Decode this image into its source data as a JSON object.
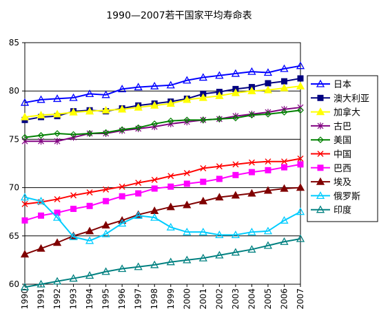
{
  "chart_data": {
    "type": "line",
    "title": "1990—2007若干国家平均寿命表",
    "xlabel": "",
    "ylabel": "",
    "x": [
      "1990",
      "1991",
      "1992",
      "1993",
      "1994",
      "1995",
      "1996",
      "1997",
      "1998",
      "1999",
      "2000",
      "2001",
      "2002",
      "2003",
      "2004",
      "2005",
      "2006",
      "2007"
    ],
    "ylim": [
      60,
      85
    ],
    "yticks": [
      "60",
      "65",
      "70",
      "75",
      "80",
      "85"
    ],
    "grid": "horizontal",
    "legend_position": "right",
    "series": [
      {
        "name": "日本",
        "color": "#0000FF",
        "marker": "triangle-open",
        "values": [
          78.8,
          79.1,
          79.2,
          79.3,
          79.7,
          79.6,
          80.2,
          80.4,
          80.5,
          80.6,
          81.1,
          81.4,
          81.6,
          81.8,
          82.0,
          81.9,
          82.3,
          82.6
        ]
      },
      {
        "name": "澳大利亚",
        "color": "#000080",
        "marker": "square",
        "values": [
          77.0,
          77.3,
          77.4,
          77.9,
          78.0,
          77.9,
          78.2,
          78.5,
          78.7,
          78.9,
          79.2,
          79.7,
          79.9,
          80.2,
          80.4,
          80.8,
          81.0,
          81.3
        ]
      },
      {
        "name": "加拿大",
        "color": "#FFFF00",
        "marker": "triangle",
        "values": [
          77.3,
          77.5,
          77.6,
          77.8,
          77.9,
          78.0,
          78.1,
          78.3,
          78.5,
          78.7,
          79.1,
          79.3,
          79.5,
          79.8,
          80.0,
          80.1,
          80.3,
          80.5
        ]
      },
      {
        "name": "古巴",
        "color": "#800080",
        "marker": "star",
        "values": [
          74.8,
          74.8,
          74.8,
          75.2,
          75.6,
          75.6,
          75.9,
          76.1,
          76.3,
          76.6,
          76.8,
          77.0,
          77.1,
          77.4,
          77.6,
          77.8,
          78.1,
          78.3
        ]
      },
      {
        "name": "美国",
        "color": "#008000",
        "marker": "diamond-open",
        "values": [
          75.2,
          75.4,
          75.6,
          75.5,
          75.6,
          75.7,
          76.0,
          76.2,
          76.6,
          76.9,
          77.0,
          77.0,
          77.1,
          77.2,
          77.5,
          77.6,
          77.8,
          78.0
        ]
      },
      {
        "name": "中国",
        "color": "#FF0000",
        "marker": "x",
        "values": [
          68.3,
          68.5,
          68.8,
          69.2,
          69.5,
          69.8,
          70.1,
          70.5,
          70.8,
          71.2,
          71.5,
          72.0,
          72.2,
          72.4,
          72.6,
          72.7,
          72.7,
          73.0
        ]
      },
      {
        "name": "巴西",
        "color": "#FF00FF",
        "marker": "square",
        "values": [
          66.6,
          67.1,
          67.4,
          67.8,
          68.1,
          68.6,
          69.1,
          69.4,
          69.9,
          70.1,
          70.4,
          70.6,
          70.9,
          71.3,
          71.6,
          71.8,
          72.1,
          72.4
        ]
      },
      {
        "name": "埃及",
        "color": "#800000",
        "marker": "triangle",
        "values": [
          63.1,
          63.7,
          64.3,
          65.0,
          65.5,
          66.1,
          66.6,
          67.2,
          67.6,
          68.0,
          68.2,
          68.6,
          69.0,
          69.2,
          69.4,
          69.7,
          69.9,
          70.0
        ]
      },
      {
        "name": "俄罗斯",
        "color": "#00CCFF",
        "marker": "triangle-open",
        "values": [
          69.0,
          68.6,
          66.9,
          64.9,
          64.5,
          65.2,
          66.3,
          67.1,
          66.9,
          65.9,
          65.4,
          65.4,
          65.1,
          65.1,
          65.4,
          65.5,
          66.6,
          67.5
        ]
      },
      {
        "name": "印度",
        "color": "#008080",
        "marker": "triangle-open",
        "values": [
          59.7,
          60.0,
          60.3,
          60.6,
          60.9,
          61.3,
          61.6,
          61.8,
          62.0,
          62.3,
          62.5,
          62.7,
          63.0,
          63.3,
          63.6,
          64.0,
          64.4,
          64.7
        ]
      }
    ]
  }
}
